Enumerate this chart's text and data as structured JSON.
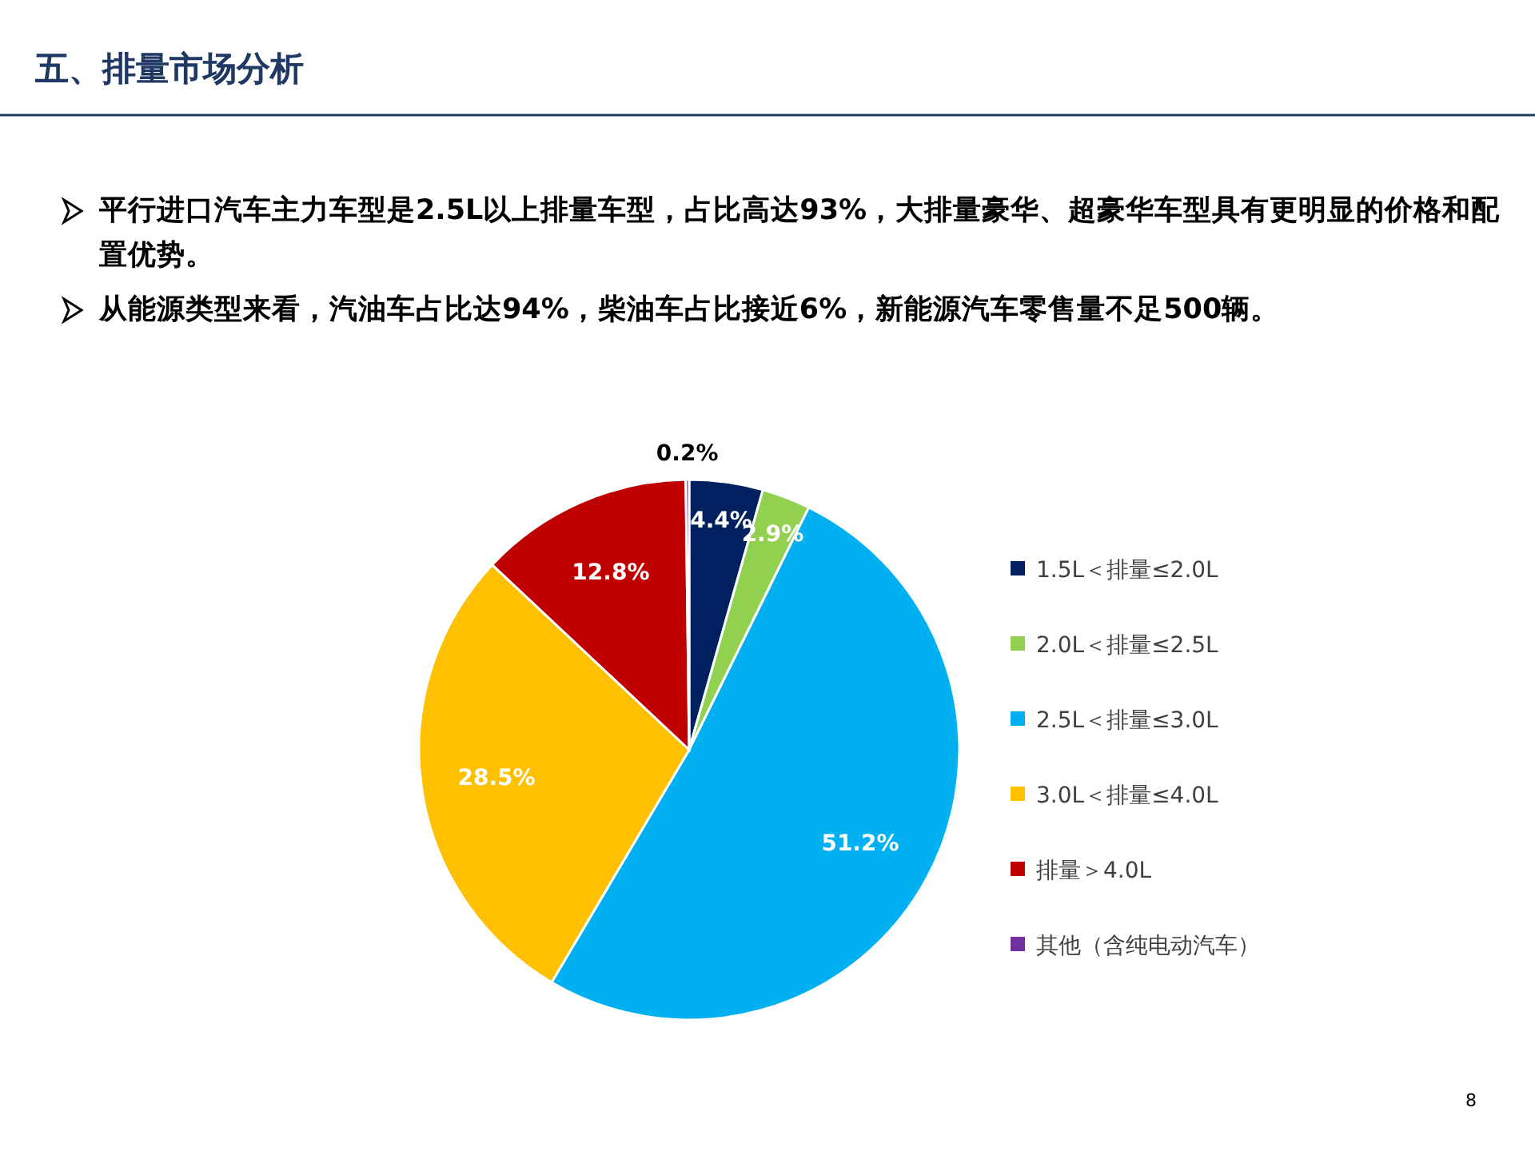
{
  "chart_data": {
    "type": "pie",
    "title": "五、排量市场分析",
    "annotations": [
      "平行进口汽车主力车型是2.5L以上排量车型，占比高达93%，大排量豪华、超豪华车型具有更明显的价格和配置优势。",
      "从能源类型来看，汽油车占比达94%，柴油车占比接近6%，新能源汽车零售量不足500辆。",
      "8"
    ],
    "categories": [
      "1.5L＜排量≤2.0L",
      "2.0L＜排量≤2.5L",
      "2.5L＜排量≤3.0L",
      "3.0L＜排量≤4.0L",
      "排量＞4.0L",
      "其他（含纯电动汽车）"
    ],
    "values": [
      4.4,
      2.9,
      51.2,
      28.5,
      12.8,
      0.2
    ],
    "value_labels": [
      "4.4%",
      "2.9%",
      "51.2%",
      "28.5%",
      "12.8%",
      "0.2%"
    ],
    "colors": [
      "#002060",
      "#92d050",
      "#00b0f0",
      "#ffc000",
      "#c00000",
      "#7030a0"
    ],
    "legend": "right"
  }
}
